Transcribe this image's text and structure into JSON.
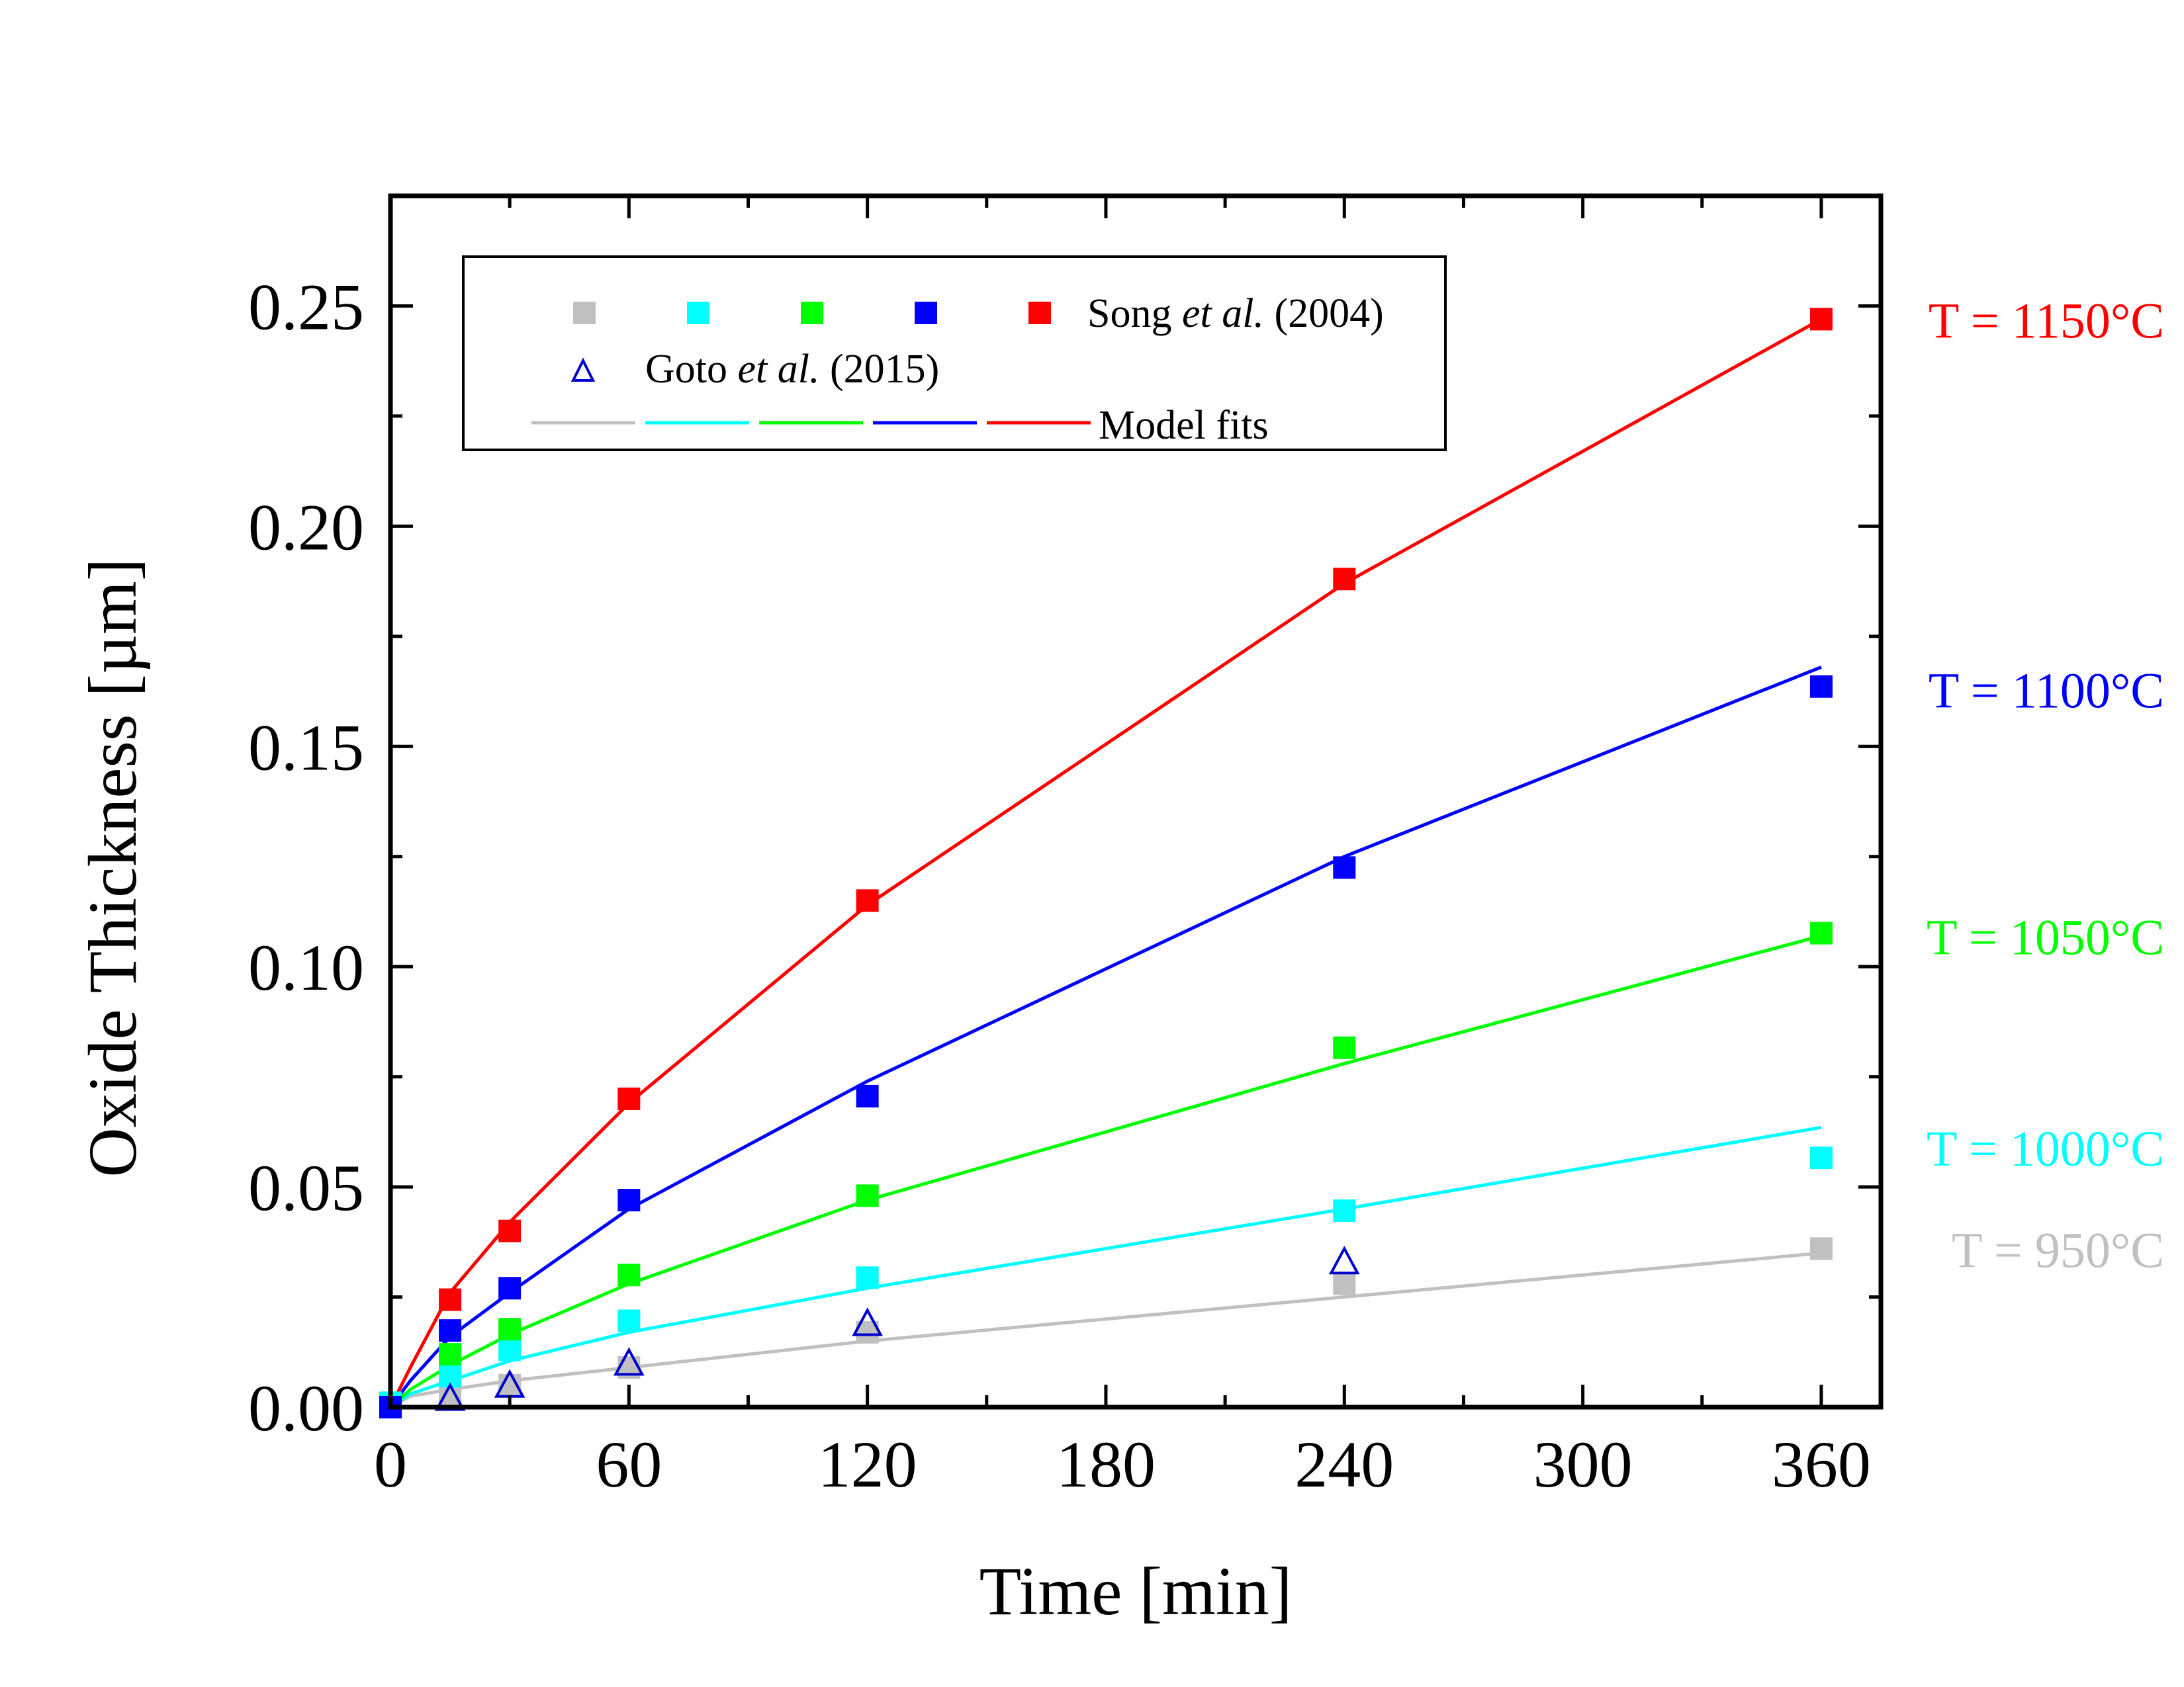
{
  "chart_data": {
    "type": "scatter",
    "title": "",
    "xlabel": "Time [min]",
    "ylabel": "Oxide Thickness  [µm]",
    "xlim": [
      0,
      375
    ],
    "ylim": [
      0,
      0.275
    ],
    "x_ticks": [
      0,
      60,
      120,
      180,
      240,
      300,
      360
    ],
    "x_tick_labels": [
      "0",
      "60",
      "120",
      "180",
      "240",
      "300",
      "360"
    ],
    "x_minor_step": 30,
    "y_ticks": [
      0,
      0.05,
      0.1,
      0.15,
      0.2,
      0.25
    ],
    "y_tick_labels": [
      "0.00",
      "0.05",
      "0.10",
      "0.15",
      "0.20",
      "0.25"
    ],
    "y_minor_step": 0.025,
    "grid": false,
    "legend_position": "top-left",
    "legend": {
      "song_label_prefix": "Song ",
      "song_label_italic": "et al.",
      "song_label_suffix": " (2004)",
      "goto_label_prefix": "Goto ",
      "goto_label_italic": "et al.",
      "goto_label_suffix": " (2015)",
      "model_label": "Model fits"
    },
    "series": [
      {
        "name": "T = 950°C",
        "color": "#c0c0c0",
        "song_x": [
          0,
          15,
          30,
          60,
          120,
          240,
          360
        ],
        "song_y": [
          0,
          0.003,
          0.005,
          0.009,
          0.017,
          0.028,
          0.036
        ],
        "fit_x": [
          0,
          5,
          15,
          30,
          60,
          120,
          240,
          360
        ],
        "fit_y": [
          0,
          0.0025,
          0.004,
          0.006,
          0.009,
          0.015,
          0.025,
          0.035
        ]
      },
      {
        "name": "T = 1000°C",
        "color": "#00ffff",
        "song_x": [
          0,
          15,
          30,
          60,
          120,
          240,
          360
        ],
        "song_y": [
          0.001,
          0.007,
          0.013,
          0.0196,
          0.0294,
          0.0446,
          0.0566
        ],
        "fit_x": [
          0,
          5,
          15,
          30,
          60,
          120,
          240,
          360
        ],
        "fit_y": [
          0,
          0.003,
          0.006,
          0.0105,
          0.017,
          0.027,
          0.045,
          0.0635
        ]
      },
      {
        "name": "T = 1050°C",
        "color": "#00ff00",
        "song_x": [
          0,
          15,
          30,
          60,
          120,
          240,
          360
        ],
        "song_y": [
          0,
          0.012,
          0.0177,
          0.03,
          0.048,
          0.0816,
          0.1076
        ],
        "fit_x": [
          0,
          5,
          15,
          30,
          60,
          120,
          240,
          360
        ],
        "fit_y": [
          0,
          0.004,
          0.0095,
          0.0165,
          0.028,
          0.047,
          0.078,
          0.107
        ]
      },
      {
        "name": "T = 1100°C",
        "color": "#0000ff",
        "song_x": [
          0,
          15,
          30,
          60,
          120,
          240,
          360
        ],
        "song_y": [
          0,
          0.0174,
          0.027,
          0.047,
          0.0706,
          0.1225,
          0.1636
        ],
        "fit_x": [
          0,
          5,
          15,
          30,
          60,
          120,
          240,
          360
        ],
        "fit_y": [
          0,
          0.006,
          0.016,
          0.026,
          0.045,
          0.074,
          0.125,
          0.168
        ]
      },
      {
        "name": "T = 1150°C",
        "color": "#ff0000",
        "song_x": [
          15,
          30,
          60,
          120,
          240,
          360
        ],
        "song_y": [
          0.0244,
          0.04,
          0.07,
          0.115,
          0.188,
          0.247
        ],
        "fit_x": [
          0,
          5,
          15,
          30,
          60,
          120,
          240,
          360
        ],
        "fit_y": [
          0,
          0.009,
          0.026,
          0.042,
          0.069,
          0.114,
          0.187,
          0.247
        ]
      }
    ],
    "goto_2015": {
      "name": "Goto et al. (2015)",
      "color": "#0000cc",
      "marker": "open-triangle",
      "x": [
        15,
        30,
        60,
        120,
        240
      ],
      "y": [
        0.002,
        0.005,
        0.01,
        0.019,
        0.033
      ]
    },
    "annotations": [
      {
        "text": "T = 1150°C",
        "color": "#ff0000",
        "y": 0.247
      },
      {
        "text": "T = 1100°C",
        "color": "#0000ff",
        "y": 0.163
      },
      {
        "text": "T = 1050°C",
        "color": "#00ff00",
        "y": 0.107
      },
      {
        "text": "T = 1000°C",
        "color": "#00ffff",
        "y": 0.059
      },
      {
        "text": "T = 950°C",
        "color": "#c0c0c0",
        "y": 0.036
      }
    ]
  }
}
